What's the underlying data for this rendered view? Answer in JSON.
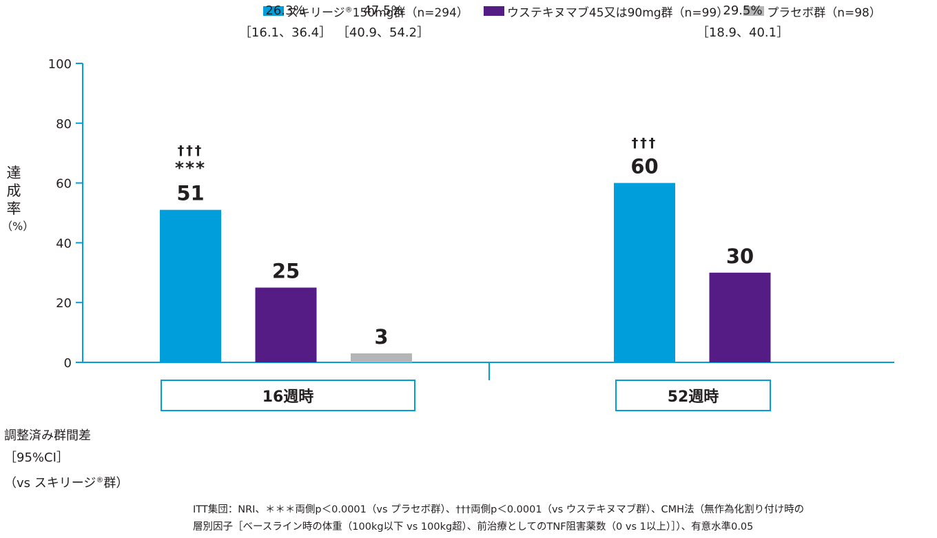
{
  "legend": [
    {
      "pre": "スキリージ",
      "sup": "®",
      "post": "150mg群（n=294）",
      "color": "#009fdc"
    },
    {
      "pre": "ウステキヌマブ45又は90mg群（n=99）",
      "sup": "",
      "post": "",
      "color": "#561c86"
    },
    {
      "pre": "プラセボ群（n=98）",
      "sup": "",
      "post": "",
      "color": "#b5b5b7"
    }
  ],
  "ylabel": {
    "chars": [
      "達",
      "成",
      "率"
    ],
    "unit": "（%）"
  },
  "chart_data": {
    "type": "bar",
    "categories": [
      "16週時",
      "52週時"
    ],
    "series": [
      {
        "name": "スキリージ®150mg群（n=294）",
        "color": "#009fdc",
        "values": [
          51,
          60
        ]
      },
      {
        "name": "ウステキヌマブ45又は90mg群（n=99）",
        "color": "#561c86",
        "values": [
          25,
          30
        ]
      },
      {
        "name": "プラセボ群（n=98）",
        "color": "#b5b5b7",
        "values": [
          3,
          null
        ]
      }
    ],
    "ylim": [
      0,
      100
    ],
    "yticks": [
      0,
      20,
      40,
      60,
      80,
      100
    ],
    "annotations": [
      {
        "category": 0,
        "series": 0,
        "lines": [
          "†††",
          "***"
        ]
      },
      {
        "category": 1,
        "series": 0,
        "lines": [
          "†††"
        ]
      }
    ],
    "grid": false,
    "legend_position": "top"
  },
  "groups": [
    "16週時",
    "52週時"
  ],
  "diff": {
    "label_lines": [
      "調整済み群間差",
      "［95%CI］"
    ],
    "label_line3_pre": "（vs スキリージ",
    "label_line3_sup": "®",
    "label_line3_post": "群）",
    "values": [
      {
        "pct": "26.3%",
        "ci": "［16.1、36.4］"
      },
      {
        "pct": "47.5%",
        "ci": "［40.9、54.2］"
      },
      {
        "pct": "29.5%",
        "ci": "［18.9、40.1］"
      }
    ]
  },
  "footnote": [
    "ITT集団：NRI、＊＊＊両側p＜0.0001（vs プラセボ群）、†††両側p＜0.0001（vs ウステキヌマブ群）、CMH法（無作為化割り付け時の",
    "層別因子［ベースライン時の体重（100kg以下 vs 100kg超）、前治療としてのTNF阻害薬数（0 vs 1以上）］）、有意水準0.05"
  ]
}
